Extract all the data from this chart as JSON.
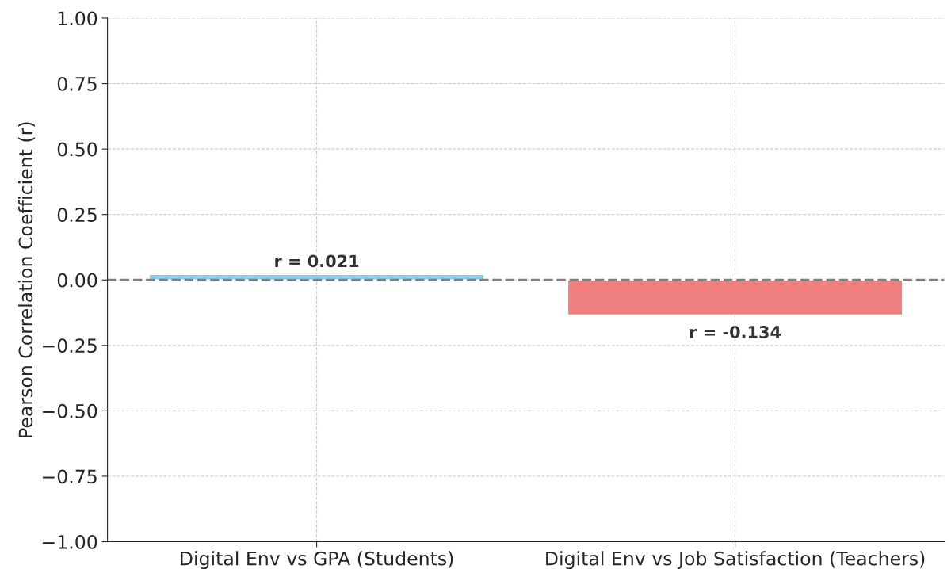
{
  "chart_data": {
    "type": "bar",
    "ylabel": "Pearson Correlation Coefficient (r)",
    "categories": [
      "Digital Env vs GPA (Students)",
      "Digital Env vs Job Satisfaction (Teachers)"
    ],
    "values": [
      0.021,
      -0.134
    ],
    "colors": [
      "#87ceeb",
      "#f08080"
    ],
    "value_labels": [
      "r = 0.021",
      "r = -0.134"
    ],
    "ylim": [
      -1.0,
      1.0
    ],
    "yticks": [
      {
        "value": -1.0,
        "label": "−1.00"
      },
      {
        "value": -0.75,
        "label": "−0.75"
      },
      {
        "value": -0.5,
        "label": "−0.50"
      },
      {
        "value": -0.25,
        "label": "−0.25"
      },
      {
        "value": 0,
        "label": "0.00"
      },
      {
        "value": 0.25,
        "label": "0.25"
      },
      {
        "value": 0.5,
        "label": "0.50"
      },
      {
        "value": 0.75,
        "label": "0.75"
      },
      {
        "value": 1.0,
        "label": "1.00"
      }
    ],
    "ref_lines": [
      {
        "axis": "y",
        "value": 0,
        "color": "#808080",
        "line_style": "dashed"
      }
    ],
    "grid": true
  }
}
